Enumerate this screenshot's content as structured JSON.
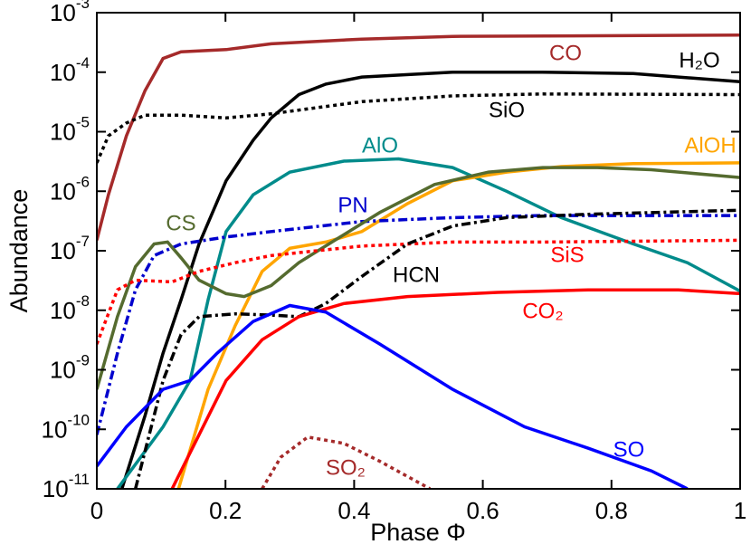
{
  "chart_data": {
    "type": "line",
    "x_label": "Phase Φ",
    "y_label": "Abundance",
    "log_y": true,
    "xlim": [
      0,
      1
    ],
    "ylim": [
      1e-11,
      0.001
    ],
    "xticks": [
      0,
      0.2,
      0.4,
      0.6,
      0.8,
      1
    ],
    "yticks": [
      {
        "value": 0.001,
        "label": "10",
        "exponent": "-3"
      },
      {
        "value": 0.0001,
        "label": "10",
        "exponent": "-4"
      },
      {
        "value": 1e-05,
        "label": "10",
        "exponent": "-5"
      },
      {
        "value": 1e-06,
        "label": "10",
        "exponent": "-6"
      },
      {
        "value": 1e-07,
        "label": "10",
        "exponent": "-7"
      },
      {
        "value": 1e-08,
        "label": "10",
        "exponent": "-8"
      },
      {
        "value": 1e-09,
        "label": "10",
        "exponent": "-9"
      },
      {
        "value": 1e-10,
        "label": "10",
        "exponent": "-10"
      },
      {
        "value": 1e-11,
        "label": "10",
        "exponent": "-11"
      }
    ],
    "series": [
      {
        "name": "CO",
        "color": "#a52a2a",
        "dash": "solid",
        "x": [
          0,
          0.018,
          0.046,
          0.075,
          0.103,
          0.131,
          0.201,
          0.271,
          0.412,
          0.553,
          1
        ],
        "values": [
          1.5e-07,
          8.7e-07,
          8.5e-06,
          4.9e-05,
          0.00017,
          0.00022,
          0.00024,
          0.0003,
          0.00036,
          0.0004,
          0.00042
        ]
      },
      {
        "name": "H₂O",
        "color": "#000000",
        "dash": "solid",
        "x": [
          0.039,
          0.075,
          0.103,
          0.131,
          0.159,
          0.201,
          0.243,
          0.271,
          0.314,
          0.356,
          0.412,
          0.553,
          0.693,
          0.834,
          0.904,
          1
        ],
        "values": [
          1e-11,
          1.7e-10,
          1.9e-09,
          1.5e-08,
          1.3e-07,
          1.5e-06,
          7.2e-06,
          1.7e-05,
          4.2e-05,
          6.3e-05,
          8.3e-05,
          0.0001,
          0.0001,
          9.5e-05,
          8.3e-05,
          6.9e-05
        ]
      },
      {
        "name": "SiO",
        "color": "#000000",
        "dash": "dotted",
        "x": [
          0,
          0.018,
          0.046,
          0.075,
          0.131,
          0.201,
          0.271,
          0.412,
          0.553,
          0.693,
          1
        ],
        "values": [
          3e-06,
          8.5e-06,
          1.4e-05,
          1.9e-05,
          1.9e-05,
          1.7e-05,
          2e-05,
          3.2e-05,
          4e-05,
          4.3e-05,
          4.2e-05
        ]
      },
      {
        "name": "AlO",
        "color": "#008b8b",
        "dash": "solid",
        "x": [
          0.032,
          0.103,
          0.145,
          0.173,
          0.201,
          0.243,
          0.3,
          0.384,
          0.469,
          0.553,
          0.637,
          0.722,
          0.834,
          0.918,
          1
        ],
        "values": [
          1e-11,
          1.1e-10,
          6.6e-10,
          1.5e-08,
          2.1e-07,
          8.7e-07,
          2.1e-06,
          3.2e-06,
          3.5e-06,
          2.5e-06,
          1e-06,
          3.6e-07,
          1.3e-07,
          6.3e-08,
          2.1e-08
        ]
      },
      {
        "name": "AlOH",
        "color": "#ffa500",
        "dash": "solid",
        "x": [
          0.127,
          0.173,
          0.215,
          0.257,
          0.3,
          0.356,
          0.412,
          0.483,
          0.553,
          0.637,
          0.722,
          0.834,
          1
        ],
        "values": [
          1e-11,
          4.7e-10,
          5.5e-09,
          4.5e-08,
          1.1e-07,
          1.4e-07,
          2.1e-07,
          6.2e-07,
          1.5e-06,
          2.1e-06,
          2.6e-06,
          2.9e-06,
          3e-06
        ]
      },
      {
        "name": "PN",
        "color": "#0000cd",
        "dash": "dashdot",
        "x": [
          0,
          0.032,
          0.06,
          0.089,
          0.131,
          0.201,
          0.271,
          0.412,
          0.553,
          0.693,
          1
        ],
        "values": [
          8.1e-11,
          1.9e-09,
          2.2e-08,
          8.3e-08,
          1.3e-07,
          1.7e-07,
          2.1e-07,
          3.1e-07,
          3.6e-07,
          3.9e-07,
          3.9e-07
        ]
      },
      {
        "name": "CS",
        "color": "#556b2f",
        "dash": "solid",
        "x": [
          0,
          0.032,
          0.06,
          0.089,
          0.11,
          0.131,
          0.159,
          0.201,
          0.229,
          0.271,
          0.314,
          0.37,
          0.44,
          0.525,
          0.609,
          0.693,
          0.778,
          0.862,
          1
        ],
        "values": [
          4.7e-10,
          7.8e-09,
          5.4e-08,
          1.3e-07,
          1.4e-07,
          7.6e-08,
          3.2e-08,
          1.9e-08,
          1.7e-08,
          2.6e-08,
          6.3e-08,
          1.5e-07,
          4.4e-07,
          1.3e-06,
          2.1e-06,
          2.5e-06,
          2.5e-06,
          2.3e-06,
          1.7e-06
        ]
      },
      {
        "name": "SiS",
        "color": "#ff0000",
        "dash": "dotted",
        "x": [
          0,
          0.032,
          0.06,
          0.117,
          0.159,
          0.215,
          0.271,
          0.412,
          0.553,
          0.693,
          1
        ],
        "values": [
          2.7e-09,
          2.2e-08,
          3.2e-08,
          3e-08,
          4.5e-08,
          6.3e-08,
          8.3e-08,
          1.2e-07,
          1.4e-07,
          1.4e-07,
          1.5e-07
        ]
      },
      {
        "name": "HCN",
        "color": "#000000",
        "dash": "dashdot",
        "x": [
          0.06,
          0.103,
          0.131,
          0.159,
          0.215,
          0.271,
          0.314,
          0.356,
          0.412,
          0.483,
          0.553,
          0.637,
          0.764,
          1
        ],
        "values": [
          1e-11,
          6.6e-10,
          3.9e-09,
          7.8e-09,
          8.7e-09,
          8.3e-09,
          7.8e-09,
          1.3e-08,
          3.7e-08,
          1.3e-07,
          2.6e-07,
          3.6e-07,
          4.1e-07,
          4.8e-07
        ]
      },
      {
        "name": "CO₂",
        "color": "#ff0000",
        "dash": "solid",
        "x": [
          0.117,
          0.159,
          0.201,
          0.257,
          0.314,
          0.384,
          0.483,
          0.623,
          0.764,
          0.904,
          1
        ],
        "values": [
          1e-11,
          8.1e-11,
          6.6e-10,
          3.2e-09,
          7.8e-09,
          1.3e-08,
          1.7e-08,
          2e-08,
          2.2e-08,
          2.2e-08,
          1.9e-08
        ]
      },
      {
        "name": "SO",
        "color": "#0000ff",
        "dash": "solid",
        "x": [
          0,
          0.046,
          0.103,
          0.145,
          0.187,
          0.243,
          0.3,
          0.356,
          0.44,
          0.553,
          0.665,
          0.764,
          0.862,
          0.918
        ],
        "values": [
          2.4e-11,
          1.1e-10,
          4.7e-10,
          6.6e-10,
          1.9e-09,
          6.5e-09,
          1.2e-08,
          9.3e-09,
          2.7e-09,
          4.7e-10,
          1.1e-10,
          4.8e-11,
          2e-11,
          1e-11
        ]
      },
      {
        "name": "SO₂",
        "color": "#a52a2a",
        "dash": "dotted",
        "x": [
          0.257,
          0.286,
          0.328,
          0.384,
          0.44,
          0.518
        ],
        "values": [
          1e-11,
          3.4e-11,
          7.4e-11,
          5.8e-11,
          2.9e-11,
          1e-11
        ]
      }
    ]
  }
}
